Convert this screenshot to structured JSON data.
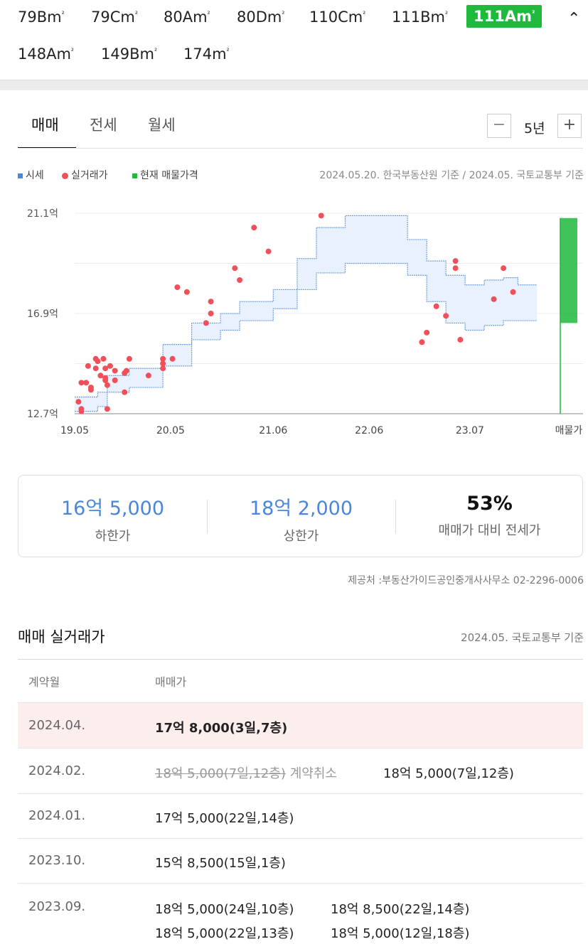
{
  "types": {
    "t1": "79Bm",
    "t2": "79Cm",
    "t3": "80Am",
    "t4": "80Dm",
    "t5": "110Cm",
    "t6": "111Bm",
    "t7": "111Am",
    "t8": "148Am",
    "t9": "149Bm",
    "t10": "174m",
    "sq": "²",
    "collapse": "⌃"
  },
  "tabs": {
    "sale": "매매",
    "jeonse": "전세",
    "monthly": "월세"
  },
  "period": {
    "minus": "−",
    "value": "5년",
    "plus": "+"
  },
  "legend": {
    "market": "시세",
    "actual": "실거래가",
    "listing": "현재 매물가격",
    "basis": "2024.05.20. 한국부동산원 기준 / 2024.05. 국토교통부 기준"
  },
  "colors": {
    "accent": "#1fb93c",
    "price_blue": "#4a86dc",
    "dot_red": "#f0505a",
    "band_fill": "#e8f1fd",
    "band_line": "#6b9fe0",
    "highlight_row": "#fdeeee"
  },
  "chart_data": {
    "type": "scatter",
    "y_ticks": [
      "21.1억",
      "16.9억",
      "12.7억"
    ],
    "ylim": [
      12.7,
      21.1
    ],
    "x_ticks": [
      "19.05",
      "20.05",
      "21.06",
      "22.06",
      "23.07",
      "매물가"
    ],
    "xlim": [
      2019.38,
      2024.42
    ],
    "grid": true,
    "market_upper": [
      [
        2019.38,
        13.4
      ],
      [
        2019.62,
        13.6
      ],
      [
        2019.72,
        14.3
      ],
      [
        2019.95,
        14.6
      ],
      [
        2020.15,
        14.6
      ],
      [
        2020.3,
        15.6
      ],
      [
        2020.6,
        16.5
      ],
      [
        2020.9,
        16.9
      ],
      [
        2021.1,
        17.4
      ],
      [
        2021.45,
        17.9
      ],
      [
        2021.7,
        19.2
      ],
      [
        2021.9,
        20.5
      ],
      [
        2022.2,
        21.0
      ],
      [
        2022.7,
        21.0
      ],
      [
        2022.85,
        20.0
      ],
      [
        2023.05,
        19.1
      ],
      [
        2023.25,
        18.5
      ],
      [
        2023.45,
        18.1
      ],
      [
        2023.65,
        18.3
      ],
      [
        2023.85,
        18.4
      ],
      [
        2024.0,
        18.1
      ],
      [
        2024.2,
        18.1
      ]
    ],
    "market_lower": [
      [
        2019.38,
        12.8
      ],
      [
        2019.62,
        13.0
      ],
      [
        2019.72,
        13.6
      ],
      [
        2019.95,
        13.8
      ],
      [
        2020.15,
        13.8
      ],
      [
        2020.3,
        14.7
      ],
      [
        2020.6,
        15.8
      ],
      [
        2020.9,
        16.2
      ],
      [
        2021.1,
        16.6
      ],
      [
        2021.45,
        17.1
      ],
      [
        2021.7,
        17.9
      ],
      [
        2021.9,
        18.6
      ],
      [
        2022.2,
        19.0
      ],
      [
        2022.7,
        19.0
      ],
      [
        2022.85,
        18.5
      ],
      [
        2023.05,
        17.4
      ],
      [
        2023.25,
        16.5
      ],
      [
        2023.45,
        16.2
      ],
      [
        2023.65,
        16.4
      ],
      [
        2023.85,
        16.6
      ],
      [
        2024.0,
        16.6
      ],
      [
        2024.2,
        16.6
      ]
    ],
    "listing_range": [
      16.5,
      20.9
    ],
    "actual": [
      [
        2019.42,
        13.2
      ],
      [
        2019.45,
        14.0
      ],
      [
        2019.45,
        12.9
      ],
      [
        2019.45,
        12.8
      ],
      [
        2019.5,
        14.0
      ],
      [
        2019.52,
        14.7
      ],
      [
        2019.55,
        13.8
      ],
      [
        2019.55,
        13.7
      ],
      [
        2019.6,
        14.6
      ],
      [
        2019.6,
        15.0
      ],
      [
        2019.62,
        14.9
      ],
      [
        2019.65,
        14.3
      ],
      [
        2019.68,
        15.0
      ],
      [
        2019.7,
        14.6
      ],
      [
        2019.7,
        14.2
      ],
      [
        2019.7,
        14.1
      ],
      [
        2019.72,
        13.9
      ],
      [
        2019.72,
        12.9
      ],
      [
        2019.75,
        14.7
      ],
      [
        2019.8,
        14.1
      ],
      [
        2019.8,
        14.5
      ],
      [
        2019.9,
        13.6
      ],
      [
        2019.9,
        14.4
      ],
      [
        2019.92,
        14.5
      ],
      [
        2019.95,
        15.0
      ],
      [
        2020.15,
        14.3
      ],
      [
        2020.3,
        14.8
      ],
      [
        2020.3,
        14.6
      ],
      [
        2020.3,
        15.0
      ],
      [
        2020.4,
        15.0
      ],
      [
        2020.45,
        18.0
      ],
      [
        2020.55,
        17.8
      ],
      [
        2020.75,
        16.5
      ],
      [
        2020.8,
        16.9
      ],
      [
        2020.8,
        17.4
      ],
      [
        2021.05,
        18.8
      ],
      [
        2021.1,
        18.3
      ],
      [
        2021.25,
        20.5
      ],
      [
        2021.4,
        19.5
      ],
      [
        2021.95,
        21.0
      ],
      [
        2023.0,
        15.7
      ],
      [
        2023.05,
        16.1
      ],
      [
        2023.15,
        17.2
      ],
      [
        2023.25,
        16.8
      ],
      [
        2023.35,
        18.8
      ],
      [
        2023.35,
        19.1
      ],
      [
        2023.4,
        15.8
      ],
      [
        2023.75,
        17.5
      ],
      [
        2023.85,
        18.8
      ],
      [
        2023.95,
        17.8
      ]
    ]
  },
  "summary": {
    "low_value": "16억 5,000",
    "low_label": "하한가",
    "high_value": "18억 2,000",
    "high_label": "상한가",
    "ratio_value": "53%",
    "ratio_label": "매매가 대비 전세가"
  },
  "provider": "제공처 :부동산가이드공인중개사사무소 02-2296-0006",
  "trades": {
    "title": "매매 실거래가",
    "basis": "2024.05. 국토교통부 기준",
    "col_month": "계약월",
    "col_price": "매매가",
    "rows": [
      {
        "month": "2024.04.",
        "p1": "17억 8,000(3일,7층)"
      },
      {
        "month": "2024.02.",
        "cancelled": "18억 5,000(7일,12층)",
        "cancel_label": "계약취소",
        "p1": "18억 5,000(7일,12층)"
      },
      {
        "month": "2024.01.",
        "p1": "17억 5,000(22일,14층)"
      },
      {
        "month": "2023.10.",
        "p1": "15억 8,500(15일,1층)"
      },
      {
        "month": "2023.09.",
        "p1": "18억 5,000(24일,10층)",
        "p2": "18억 8,500(22일,14층)",
        "p3": "18억 5,000(22일,13층)",
        "p4": "18억 5,000(12일,18층)"
      }
    ]
  }
}
